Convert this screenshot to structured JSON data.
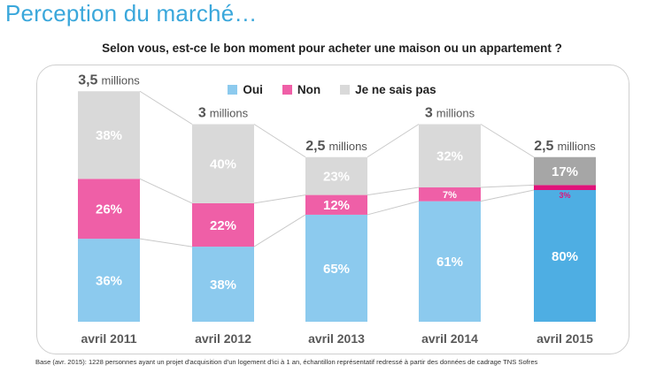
{
  "page": {
    "title": "Perception du marché…",
    "question": "Selon vous, est-ce le bon moment pour acheter une maison ou un appartement ?",
    "footnote": "Base (avr. 2015): 1228 personnes ayant un projet d'acquisition d'un logement d'ici à 1 an, échantillon représentatif redressé à partir des données de cadrage TNS Sofres"
  },
  "colors": {
    "oui": "#8ccaee",
    "oui_highlight": "#4eaee3",
    "non": "#ef5fa7",
    "non_highlight": "#e0137a",
    "nsp": "#d9d9d9",
    "nsp_highlight": "#a6a6a6",
    "title": "#3aa7db"
  },
  "chart_data": {
    "type": "bar",
    "stacked": true,
    "percent_scale": true,
    "categories": [
      "avril 2011",
      "avril 2012",
      "avril 2013",
      "avril 2014",
      "avril 2015"
    ],
    "series": [
      {
        "name": "Oui",
        "values": [
          36,
          38,
          65,
          61,
          80
        ]
      },
      {
        "name": "Non",
        "values": [
          26,
          22,
          12,
          7,
          3
        ]
      },
      {
        "name": "Je ne sais pas",
        "values": [
          38,
          40,
          23,
          32,
          17
        ]
      }
    ],
    "totals": [
      {
        "number": "3,5",
        "unit": "millions"
      },
      {
        "number": "3",
        "unit": "millions"
      },
      {
        "number": "2,5",
        "unit": "millions"
      },
      {
        "number": "3",
        "unit": "millions"
      },
      {
        "number": "2,5",
        "unit": "millions"
      }
    ],
    "total_values_millions": [
      3.5,
      3,
      2.5,
      3,
      2.5
    ],
    "highlight_index": 4,
    "legend_position": "top-center",
    "connector_lines": true
  }
}
